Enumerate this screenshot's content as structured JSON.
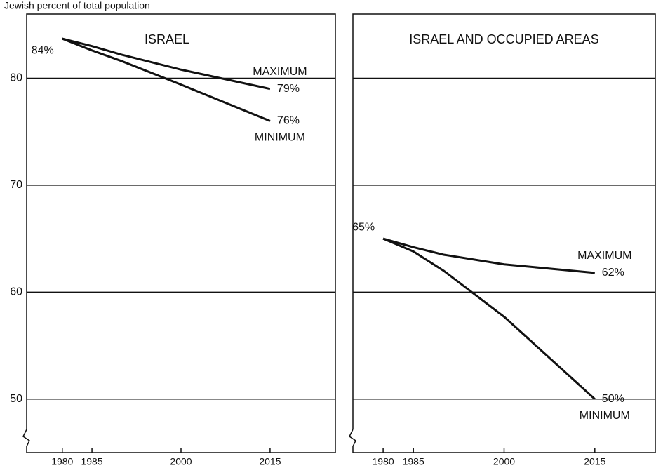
{
  "chart_data": [
    {
      "type": "line",
      "title": "ISRAEL",
      "ylabel": "Jewish percent of total population",
      "x": [
        1980,
        1985,
        1990,
        2000,
        2015
      ],
      "series": [
        {
          "name": "MAXIMUM",
          "color": "#111111",
          "values": [
            83.7,
            83.0,
            82.2,
            80.8,
            79
          ],
          "value_labels": [
            "84%",
            null,
            null,
            null,
            "79%"
          ]
        },
        {
          "name": "MINIMUM",
          "color": "#111111",
          "values": [
            83.7,
            82.6,
            81.6,
            79.4,
            76
          ],
          "value_labels": [
            null,
            null,
            null,
            null,
            "76%"
          ]
        }
      ],
      "xlim": [
        1974,
        2026
      ],
      "xticks": [
        1980,
        1985,
        2000,
        2015
      ],
      "ylim": [
        45,
        86
      ],
      "yticks": [
        50,
        60,
        70,
        80
      ],
      "grid": true,
      "ytick_labels": true
    },
    {
      "type": "line",
      "title": "ISRAEL AND OCCUPIED AREAS",
      "x": [
        1980,
        1985,
        1990,
        2000,
        2015
      ],
      "series": [
        {
          "name": "MAXIMUM",
          "color": "#111111",
          "values": [
            65,
            64.2,
            63.5,
            62.6,
            61.8
          ],
          "value_labels": [
            "65%",
            null,
            null,
            null,
            "62%"
          ]
        },
        {
          "name": "MINIMUM",
          "color": "#111111",
          "values": [
            65,
            63.8,
            62,
            57.7,
            50
          ],
          "value_labels": [
            null,
            null,
            null,
            null,
            "50%"
          ]
        }
      ],
      "xlim": [
        1975,
        2025
      ],
      "xticks": [
        1980,
        1985,
        2000,
        2015
      ],
      "ylim": [
        45,
        86
      ],
      "yticks": [
        50,
        60,
        70,
        80
      ],
      "grid": true,
      "ytick_labels": false
    }
  ]
}
